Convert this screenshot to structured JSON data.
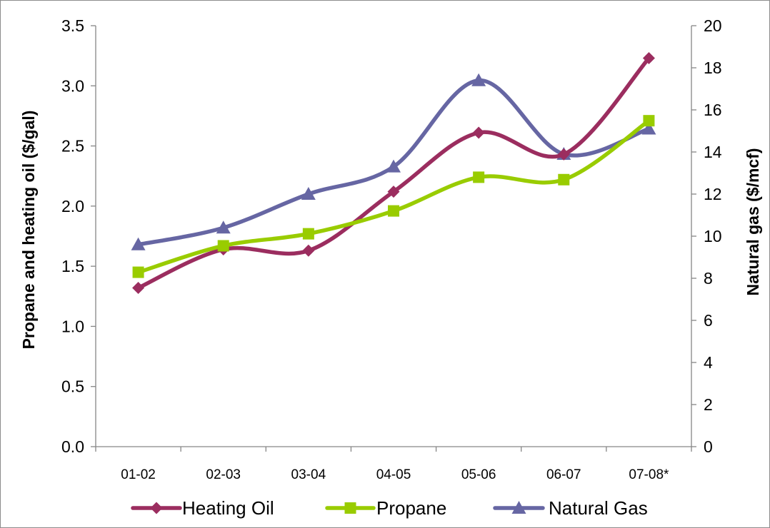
{
  "chart_data": {
    "type": "line",
    "categories": [
      "01-02",
      "02-03",
      "03-04",
      "04-05",
      "05-06",
      "06-07",
      "07-08*"
    ],
    "series": [
      {
        "name": "Heating Oil",
        "axis": "left",
        "color": "#9b2d5f",
        "marker": "diamond",
        "values": [
          1.32,
          1.64,
          1.63,
          2.12,
          2.61,
          2.43,
          3.23
        ]
      },
      {
        "name": "Propane",
        "axis": "left",
        "color": "#99cc00",
        "marker": "square",
        "values": [
          1.45,
          1.67,
          1.77,
          1.96,
          2.24,
          2.22,
          2.71
        ]
      },
      {
        "name": "Natural Gas",
        "axis": "right",
        "color": "#6666a3",
        "marker": "triangle",
        "values": [
          9.6,
          10.4,
          12.0,
          13.3,
          17.4,
          13.9,
          15.1
        ]
      }
    ],
    "ylabel": "Propane and heating oil ($/gal)",
    "y2label": "Natural gas ($/mcf)",
    "ylim": [
      0,
      3.5
    ],
    "y_ticks": [
      "0.0",
      "0.5",
      "1.0",
      "1.5",
      "2.0",
      "2.5",
      "3.0",
      "3.5"
    ],
    "y2lim": [
      0,
      20
    ],
    "y2_ticks": [
      "0",
      "2",
      "4",
      "6",
      "8",
      "10",
      "12",
      "14",
      "16",
      "18",
      "20"
    ],
    "grid": false,
    "legend_position": "bottom"
  }
}
